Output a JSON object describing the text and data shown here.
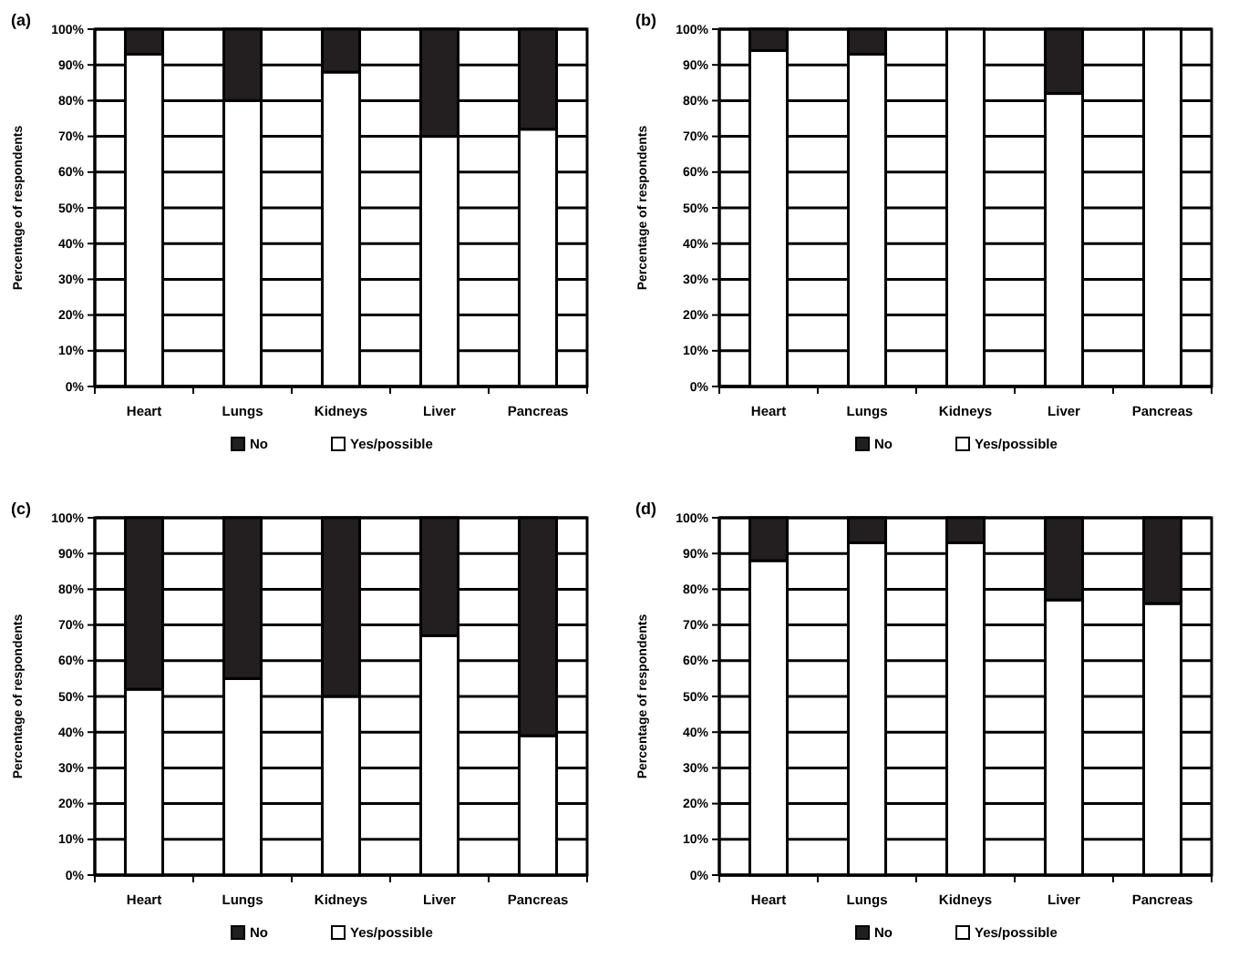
{
  "chart_data": [
    {
      "type": "bar",
      "title": "(a)",
      "ylabel": "Percentage of respondents",
      "categories": [
        "Heart",
        "Lungs",
        "Kidneys",
        "Liver",
        "Pancreas"
      ],
      "stacked": true,
      "legend": "bottom",
      "grid": "y",
      "ylim": [
        0,
        100
      ],
      "yticks": [
        {
          "value": 0,
          "label": "0%"
        },
        {
          "value": 10,
          "label": "10%"
        },
        {
          "value": 20,
          "label": "20%"
        },
        {
          "value": 30,
          "label": "30%"
        },
        {
          "value": 40,
          "label": "40%"
        },
        {
          "value": 50,
          "label": "50%"
        },
        {
          "value": 60,
          "label": "60%"
        },
        {
          "value": 70,
          "label": "70%"
        },
        {
          "value": 80,
          "label": "80%"
        },
        {
          "value": 90,
          "label": "90%"
        },
        {
          "value": 100,
          "label": "100%"
        }
      ],
      "series": [
        {
          "name": "Yes/possible",
          "color": "#ffffff",
          "values": [
            93,
            80,
            88,
            70,
            72
          ]
        },
        {
          "name": "No",
          "color": "#231f20",
          "values": [
            7,
            20,
            12,
            30,
            28
          ]
        }
      ]
    },
    {
      "type": "bar",
      "title": "(b)",
      "ylabel": "Percentage of respondents",
      "categories": [
        "Heart",
        "Lungs",
        "Kidneys",
        "Liver",
        "Pancreas"
      ],
      "stacked": true,
      "legend": "bottom",
      "grid": "y",
      "ylim": [
        0,
        100
      ],
      "yticks": [
        {
          "value": 0,
          "label": "0%"
        },
        {
          "value": 10,
          "label": "10%"
        },
        {
          "value": 20,
          "label": "20%"
        },
        {
          "value": 30,
          "label": "30%"
        },
        {
          "value": 40,
          "label": "40%"
        },
        {
          "value": 50,
          "label": "50%"
        },
        {
          "value": 60,
          "label": "60%"
        },
        {
          "value": 70,
          "label": "70%"
        },
        {
          "value": 80,
          "label": "80%"
        },
        {
          "value": 90,
          "label": "90%"
        },
        {
          "value": 100,
          "label": "100%"
        }
      ],
      "series": [
        {
          "name": "Yes/possible",
          "color": "#ffffff",
          "values": [
            94,
            93,
            100,
            82,
            100
          ]
        },
        {
          "name": "No",
          "color": "#231f20",
          "values": [
            6,
            7,
            0,
            18,
            0
          ]
        }
      ]
    },
    {
      "type": "bar",
      "title": "(c)",
      "ylabel": "Percentage of respondents",
      "categories": [
        "Heart",
        "Lungs",
        "Kidneys",
        "Liver",
        "Pancreas"
      ],
      "stacked": true,
      "legend": "bottom",
      "grid": "y",
      "ylim": [
        0,
        100
      ],
      "yticks": [
        {
          "value": 0,
          "label": "0%"
        },
        {
          "value": 10,
          "label": "10%"
        },
        {
          "value": 20,
          "label": "20%"
        },
        {
          "value": 30,
          "label": "30%"
        },
        {
          "value": 40,
          "label": "40%"
        },
        {
          "value": 50,
          "label": "50%"
        },
        {
          "value": 60,
          "label": "60%"
        },
        {
          "value": 70,
          "label": "70%"
        },
        {
          "value": 80,
          "label": "80%"
        },
        {
          "value": 90,
          "label": "90%"
        },
        {
          "value": 100,
          "label": "100%"
        }
      ],
      "series": [
        {
          "name": "Yes/possible",
          "color": "#ffffff",
          "values": [
            52,
            55,
            50,
            67,
            39
          ]
        },
        {
          "name": "No",
          "color": "#231f20",
          "values": [
            48,
            45,
            50,
            33,
            61
          ]
        }
      ]
    },
    {
      "type": "bar",
      "title": "(d)",
      "ylabel": "Percentage of respondents",
      "categories": [
        "Heart",
        "Lungs",
        "Kidneys",
        "Liver",
        "Pancreas"
      ],
      "stacked": true,
      "legend": "bottom",
      "grid": "y",
      "ylim": [
        0,
        100
      ],
      "yticks": [
        {
          "value": 0,
          "label": "0%"
        },
        {
          "value": 10,
          "label": "10%"
        },
        {
          "value": 20,
          "label": "20%"
        },
        {
          "value": 30,
          "label": "30%"
        },
        {
          "value": 40,
          "label": "40%"
        },
        {
          "value": 50,
          "label": "50%"
        },
        {
          "value": 60,
          "label": "60%"
        },
        {
          "value": 70,
          "label": "70%"
        },
        {
          "value": 80,
          "label": "80%"
        },
        {
          "value": 90,
          "label": "90%"
        },
        {
          "value": 100,
          "label": "100%"
        }
      ],
      "series": [
        {
          "name": "Yes/possible",
          "color": "#ffffff",
          "values": [
            88,
            93,
            93,
            77,
            76
          ]
        },
        {
          "name": "No",
          "color": "#231f20",
          "values": [
            12,
            7,
            7,
            23,
            24
          ]
        }
      ]
    }
  ]
}
